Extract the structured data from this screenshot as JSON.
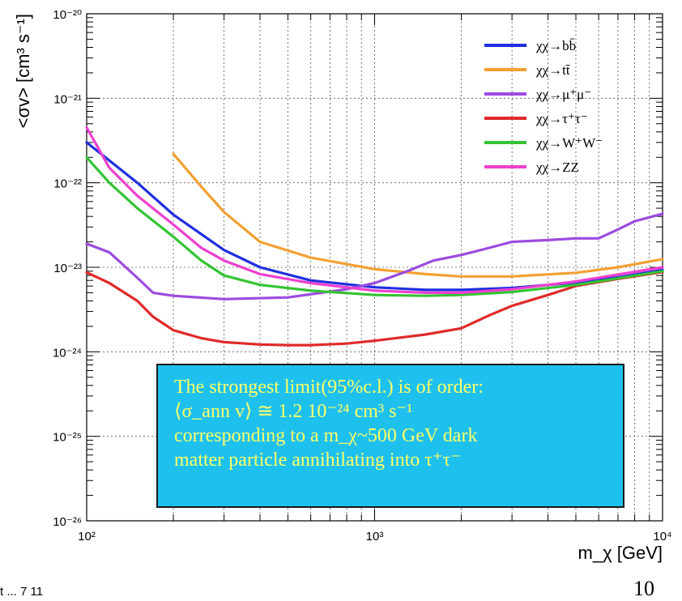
{
  "chart_data": {
    "type": "line",
    "xscale": "log",
    "yscale": "log",
    "xlim": [
      100,
      10000
    ],
    "ylim": [
      1e-26,
      1e-20
    ],
    "xlabel": "m_χ [GeV]",
    "ylabel": "<σv> [cm³ s⁻¹]",
    "xticks": [
      {
        "value": 100,
        "label": "10²"
      },
      {
        "value": 1000,
        "label": "10³"
      },
      {
        "value": 10000,
        "label": "10⁴"
      }
    ],
    "yticks": [
      {
        "value": 1e-26,
        "label": "10⁻²⁶"
      },
      {
        "value": 1e-25,
        "label": "10⁻²⁵"
      },
      {
        "value": 1e-24,
        "label": "10⁻²⁴"
      },
      {
        "value": 1e-23,
        "label": "10⁻²³"
      },
      {
        "value": 1e-22,
        "label": "10⁻²²"
      },
      {
        "value": 1e-21,
        "label": "10⁻²¹"
      },
      {
        "value": 1e-20,
        "label": "10⁻²⁰"
      }
    ],
    "grid": true,
    "legend_position": "top-right",
    "series": [
      {
        "name": "χχ→bb̄",
        "color": "#1f2fe0",
        "x": [
          100,
          150,
          200,
          300,
          400,
          600,
          1000,
          1500,
          2000,
          3000,
          5000,
          7000,
          10000
        ],
        "y": [
          3e-22,
          1e-22,
          4.2e-23,
          1.6e-23,
          1e-23,
          7e-24,
          5.8e-24,
          5.4e-24,
          5.4e-24,
          5.7e-24,
          6.6e-24,
          7.6e-24,
          9.3e-24
        ]
      },
      {
        "name": "χχ→tt̄",
        "color": "#f3a033",
        "x": [
          200,
          250,
          300,
          400,
          600,
          1000,
          1500,
          2000,
          3000,
          5000,
          7000,
          10000
        ],
        "y": [
          2.2e-22,
          9e-23,
          4.5e-23,
          2e-23,
          1.3e-23,
          9.5e-24,
          8.3e-24,
          7.8e-24,
          7.8e-24,
          8.6e-24,
          1e-23,
          1.25e-23
        ]
      },
      {
        "name": "χχ→μ⁺μ⁻",
        "color": "#9c4be0",
        "x": [
          100,
          120,
          150,
          170,
          200,
          300,
          500,
          800,
          1000,
          1300,
          1600,
          2000,
          2500,
          3000,
          4000,
          5000,
          6000,
          7000,
          8000,
          10000
        ],
        "y": [
          1.9e-23,
          1.5e-23,
          7.5e-24,
          5e-24,
          4.6e-24,
          4.2e-24,
          4.4e-24,
          5.5e-24,
          6.5e-24,
          9e-24,
          1.2e-23,
          1.4e-23,
          1.7e-23,
          2e-23,
          2.1e-23,
          2.2e-23,
          2.2e-23,
          2.8e-23,
          3.5e-23,
          4.3e-23
        ]
      },
      {
        "name": "χχ→τ⁺τ⁻",
        "color": "#e02a2a",
        "x": [
          100,
          120,
          150,
          170,
          200,
          250,
          300,
          400,
          500,
          600,
          800,
          1000,
          1500,
          2000,
          2500,
          3000,
          4000,
          5000,
          7000,
          10000
        ],
        "y": [
          8.7e-24,
          6.5e-24,
          4e-24,
          2.6e-24,
          1.8e-24,
          1.45e-24,
          1.3e-24,
          1.22e-24,
          1.2e-24,
          1.2e-24,
          1.25e-24,
          1.35e-24,
          1.6e-24,
          1.9e-24,
          2.7e-24,
          3.5e-24,
          4.7e-24,
          6e-24,
          7.3e-24,
          8.8e-24
        ]
      },
      {
        "name": "χχ→W⁺W⁻",
        "color": "#33c433",
        "x": [
          100,
          120,
          150,
          200,
          250,
          300,
          400,
          600,
          1000,
          1500,
          2000,
          3000,
          5000,
          7000,
          10000
        ],
        "y": [
          2e-22,
          1e-22,
          5e-23,
          2.3e-23,
          1.2e-23,
          8e-24,
          6.2e-24,
          5.3e-24,
          4.7e-24,
          4.6e-24,
          4.7e-24,
          5.1e-24,
          6.2e-24,
          7.4e-24,
          9e-24
        ]
      },
      {
        "name": "χχ→ZZ",
        "color": "#ee3fcf",
        "x": [
          100,
          120,
          150,
          200,
          250,
          300,
          400,
          600,
          1000,
          1500,
          2000,
          3000,
          5000,
          7000,
          10000
        ],
        "y": [
          4.5e-22,
          1.5e-22,
          7e-23,
          3.2e-23,
          1.7e-23,
          1.2e-23,
          8.3e-24,
          6.5e-24,
          5.3e-24,
          5e-24,
          5e-24,
          5.5e-24,
          6.8e-24,
          8.2e-24,
          1e-23
        ]
      }
    ],
    "annotation": {
      "lines": [
        "The strongest limit(95%c.l.) is of order:",
        "⟨σ_ann v⟩ ≅ 1.2 10⁻²⁴ cm³ s⁻¹",
        "corresponding to a m_χ~500 GeV dark",
        "matter particle annihilating into τ⁺τ⁻"
      ],
      "background": "#1ec1ee",
      "text_color": "#ffff66"
    }
  },
  "footer": {
    "left_fragment": "t ... 7 11",
    "page_number": "10"
  }
}
